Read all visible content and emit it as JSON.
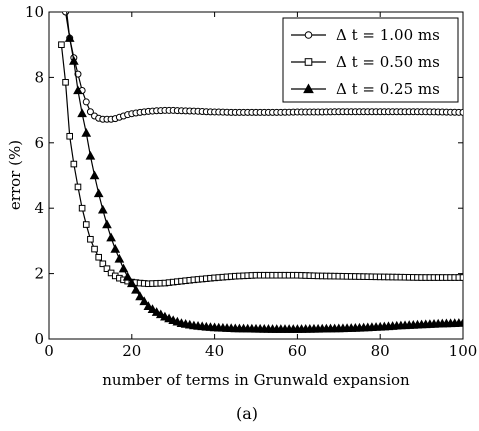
{
  "chart_data": {
    "type": "line",
    "xlabel": "number of terms in Grunwald expansion",
    "ylabel": "error (%)",
    "xlim": [
      0,
      100
    ],
    "ylim": [
      0,
      10
    ],
    "xticks": [
      0,
      20,
      40,
      60,
      80,
      100
    ],
    "yticks": [
      0,
      2,
      4,
      6,
      8,
      10
    ],
    "grid": false,
    "legend_position": "top-right",
    "caption": "(a)",
    "series": [
      {
        "name": "Δ t = 1.00 ms",
        "marker": "circle",
        "points": [
          [
            3,
            10.5
          ],
          [
            4,
            10.0
          ],
          [
            5,
            9.2
          ],
          [
            6,
            8.6
          ],
          [
            7,
            8.1
          ],
          [
            8,
            7.6
          ],
          [
            9,
            7.25
          ],
          [
            10,
            6.95
          ],
          [
            11,
            6.82
          ],
          [
            12,
            6.75
          ],
          [
            13,
            6.72
          ],
          [
            14,
            6.72
          ],
          [
            15,
            6.72
          ],
          [
            16,
            6.74
          ],
          [
            17,
            6.78
          ],
          [
            18,
            6.82
          ],
          [
            19,
            6.86
          ],
          [
            20,
            6.89
          ],
          [
            22,
            6.93
          ],
          [
            24,
            6.96
          ],
          [
            26,
            6.98
          ],
          [
            28,
            6.99
          ],
          [
            30,
            6.99
          ],
          [
            32,
            6.98
          ],
          [
            35,
            6.97
          ],
          [
            38,
            6.95
          ],
          [
            41,
            6.94
          ],
          [
            44,
            6.93
          ],
          [
            47,
            6.93
          ],
          [
            50,
            6.93
          ],
          [
            55,
            6.93
          ],
          [
            60,
            6.94
          ],
          [
            65,
            6.94
          ],
          [
            70,
            6.95
          ],
          [
            75,
            6.95
          ],
          [
            80,
            6.95
          ],
          [
            85,
            6.95
          ],
          [
            90,
            6.95
          ],
          [
            95,
            6.94
          ],
          [
            100,
            6.93
          ]
        ]
      },
      {
        "name": "Δ t = 0.50 ms",
        "marker": "square",
        "points": [
          [
            3,
            9.0
          ],
          [
            4,
            7.85
          ],
          [
            5,
            6.2
          ],
          [
            6,
            5.35
          ],
          [
            7,
            4.65
          ],
          [
            8,
            4.0
          ],
          [
            9,
            3.5
          ],
          [
            10,
            3.05
          ],
          [
            11,
            2.75
          ],
          [
            12,
            2.5
          ],
          [
            13,
            2.3
          ],
          [
            14,
            2.15
          ],
          [
            15,
            2.02
          ],
          [
            16,
            1.93
          ],
          [
            17,
            1.86
          ],
          [
            18,
            1.81
          ],
          [
            19,
            1.77
          ],
          [
            20,
            1.74
          ],
          [
            22,
            1.71
          ],
          [
            24,
            1.69
          ],
          [
            26,
            1.7
          ],
          [
            28,
            1.71
          ],
          [
            30,
            1.74
          ],
          [
            35,
            1.81
          ],
          [
            40,
            1.87
          ],
          [
            45,
            1.92
          ],
          [
            50,
            1.95
          ],
          [
            55,
            1.95
          ],
          [
            60,
            1.95
          ],
          [
            65,
            1.93
          ],
          [
            70,
            1.92
          ],
          [
            75,
            1.91
          ],
          [
            80,
            1.9
          ],
          [
            85,
            1.89
          ],
          [
            90,
            1.88
          ],
          [
            95,
            1.88
          ],
          [
            100,
            1.88
          ]
        ]
      },
      {
        "name": "Δ t = 0.25 ms",
        "marker": "triangle",
        "points": [
          [
            4,
            10.3
          ],
          [
            5,
            9.2
          ],
          [
            6,
            8.5
          ],
          [
            7,
            7.6
          ],
          [
            8,
            6.9
          ],
          [
            9,
            6.3
          ],
          [
            10,
            5.6
          ],
          [
            11,
            5.0
          ],
          [
            12,
            4.45
          ],
          [
            13,
            3.95
          ],
          [
            14,
            3.5
          ],
          [
            15,
            3.1
          ],
          [
            16,
            2.75
          ],
          [
            17,
            2.45
          ],
          [
            18,
            2.15
          ],
          [
            19,
            1.9
          ],
          [
            20,
            1.7
          ],
          [
            22,
            1.3
          ],
          [
            24,
            1.0
          ],
          [
            26,
            0.82
          ],
          [
            28,
            0.68
          ],
          [
            30,
            0.57
          ],
          [
            32,
            0.48
          ],
          [
            35,
            0.41
          ],
          [
            38,
            0.37
          ],
          [
            40,
            0.35
          ],
          [
            45,
            0.32
          ],
          [
            50,
            0.31
          ],
          [
            55,
            0.3
          ],
          [
            60,
            0.3
          ],
          [
            65,
            0.31
          ],
          [
            70,
            0.32
          ],
          [
            75,
            0.34
          ],
          [
            80,
            0.37
          ],
          [
            85,
            0.41
          ],
          [
            90,
            0.44
          ],
          [
            95,
            0.47
          ],
          [
            100,
            0.49
          ]
        ]
      }
    ]
  }
}
